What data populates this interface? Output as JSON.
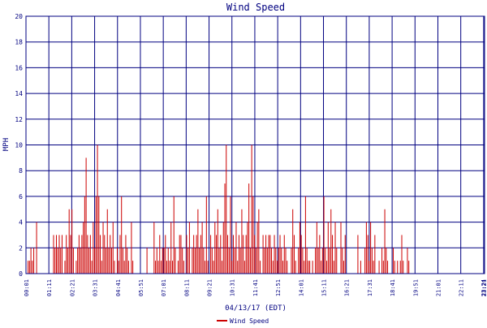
{
  "chart_data": {
    "type": "bar",
    "title": "Wind Speed",
    "xlabel": "04/13/17 (EDT)",
    "ylabel": "MPH",
    "ylim": [
      0,
      20
    ],
    "y_ticks": [
      0,
      2,
      4,
      6,
      8,
      10,
      12,
      14,
      16,
      18,
      20
    ],
    "x_tick_labels": [
      "00:01",
      "01:11",
      "02:21",
      "03:31",
      "04:41",
      "05:51",
      "07:01",
      "08:11",
      "09:21",
      "10:31",
      "11:41",
      "12:51",
      "14:01",
      "15:11",
      "16:21",
      "17:31",
      "18:41",
      "19:51",
      "21:01",
      "22:11",
      "23:21",
      "23:24"
    ],
    "grid": true,
    "legend_position": "bottom-center",
    "colors": {
      "series": "#cc0000",
      "grid": "#000080",
      "text": "#000080",
      "background": "#ffffff"
    },
    "series": [
      {
        "name": "Wind Speed",
        "color": "#cc0000",
        "x_start": "00:01",
        "x_end": "23:24",
        "values": [
          0,
          1,
          1,
          2,
          1,
          2,
          0,
          4,
          0,
          0,
          0,
          0,
          0,
          0,
          0,
          0,
          0,
          0,
          0,
          3,
          2,
          3,
          2,
          3,
          2,
          3,
          0,
          1,
          3,
          2,
          5,
          3,
          5,
          2,
          0,
          1,
          2,
          3,
          2,
          3,
          4,
          6,
          9,
          3,
          2,
          3,
          1,
          4,
          2,
          6,
          10,
          6,
          3,
          1,
          4,
          3,
          2,
          5,
          2,
          3,
          2,
          4,
          1,
          0,
          2,
          1,
          3,
          6,
          2,
          1,
          3,
          2,
          1,
          0,
          4,
          1,
          0,
          0,
          0,
          0,
          0,
          0,
          0,
          0,
          0,
          2,
          0,
          0,
          0,
          0,
          4,
          1,
          2,
          1,
          3,
          1,
          2,
          2,
          3,
          1,
          2,
          1,
          4,
          1,
          6,
          2,
          0,
          1,
          3,
          3,
          2,
          1,
          0,
          3,
          2,
          4,
          0,
          2,
          3,
          2,
          3,
          5,
          2,
          3,
          4,
          2,
          1,
          6,
          1,
          0,
          3,
          2,
          1,
          4,
          3,
          5,
          2,
          3,
          1,
          4,
          7,
          10,
          3,
          2,
          6,
          1,
          3,
          2,
          4,
          1,
          3,
          2,
          5,
          3,
          1,
          3,
          4,
          7,
          2,
          10,
          6,
          3,
          2,
          4,
          5,
          1,
          0,
          3,
          2,
          3,
          2,
          3,
          3,
          2,
          1,
          3,
          2,
          1,
          2,
          3,
          2,
          1,
          3,
          2,
          1,
          0,
          0,
          2,
          5,
          3,
          1,
          0,
          2,
          4,
          3,
          2,
          1,
          6,
          2,
          1,
          1,
          0,
          1,
          0,
          2,
          4,
          2,
          3,
          1,
          2,
          6,
          2,
          1,
          4,
          2,
          5,
          3,
          1,
          4,
          2,
          0,
          0,
          4,
          2,
          1,
          3,
          0,
          0,
          0,
          0,
          0,
          0,
          0,
          0,
          3,
          0,
          1,
          0,
          0,
          2,
          4,
          3,
          1,
          4,
          2,
          1,
          3,
          0,
          0,
          1,
          0,
          2,
          1,
          5,
          2,
          1,
          0,
          0,
          0,
          2,
          1,
          0,
          1,
          0,
          1,
          3,
          1,
          0,
          0,
          2,
          1,
          0,
          0,
          0,
          0,
          0,
          0,
          0,
          0,
          0,
          0,
          0,
          0,
          0,
          0,
          0,
          0,
          0,
          0,
          0,
          0,
          0,
          0,
          0,
          0,
          0,
          0,
          0,
          0,
          0,
          0,
          0,
          0,
          0,
          0,
          0,
          0,
          0,
          0,
          0,
          0,
          0,
          0,
          0,
          0,
          0,
          0,
          0,
          0,
          0,
          0,
          0,
          0,
          0
        ]
      }
    ]
  }
}
